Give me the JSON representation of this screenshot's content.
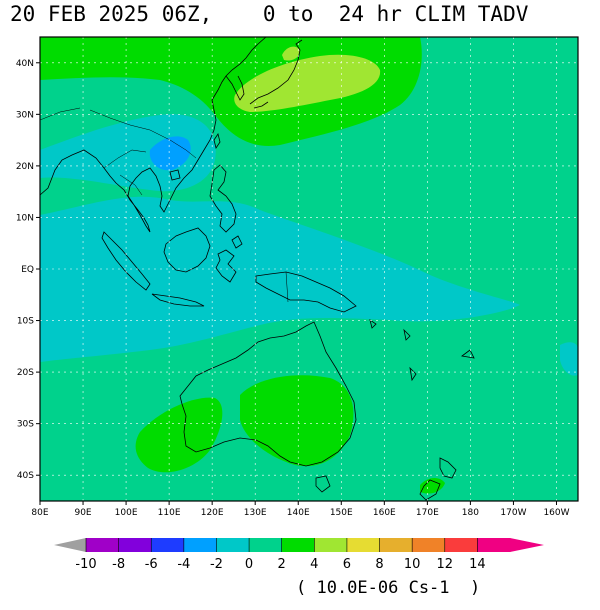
{
  "title": "20 FEB 2025 06Z,    0 to  24 hr CLIM TADV",
  "map": {
    "lat_labels": [
      "40N",
      "30N",
      "20N",
      "10N",
      "EQ",
      "10S",
      "20S",
      "30S",
      "40S"
    ],
    "lat_values": [
      40,
      30,
      20,
      10,
      0,
      -10,
      -20,
      -30,
      -40
    ],
    "lon_labels": [
      "80E",
      "90E",
      "100E",
      "110E",
      "120E",
      "130E",
      "140E",
      "150E",
      "160E",
      "170E",
      "180",
      "170W",
      "160W"
    ],
    "lon_values": [
      80,
      90,
      100,
      110,
      120,
      130,
      140,
      150,
      160,
      170,
      180,
      190,
      200
    ],
    "lon_range": [
      80,
      205
    ],
    "lat_range": [
      -45,
      45
    ],
    "background_color": "#00d28c",
    "field_colors": {
      "-4_to_-2": "#00a0ff",
      "-2_to_0": "#00c8c8",
      "0_to_2": "#00d28c",
      "2_to_4": "#00dc00",
      "4_to_6": "#a0e632",
      "6_to_8": "#e6dc32"
    }
  },
  "colorbar": {
    "labels": [
      "-10",
      "-8",
      "-6",
      "-4",
      "-2",
      "0",
      "2",
      "4",
      "6",
      "8",
      "10",
      "12",
      "14"
    ],
    "colors": [
      "#a000c8",
      "#8200dc",
      "#1e3cff",
      "#00a0ff",
      "#00c8c8",
      "#00d28c",
      "#00dc00",
      "#a0e632",
      "#e6dc32",
      "#e6af2d",
      "#f08228",
      "#fa3c3c",
      "#f00082"
    ],
    "under_color": "#a0a0a0",
    "over_color": "#f00082",
    "units": "( 10.0E-06 Cs-1  )"
  }
}
